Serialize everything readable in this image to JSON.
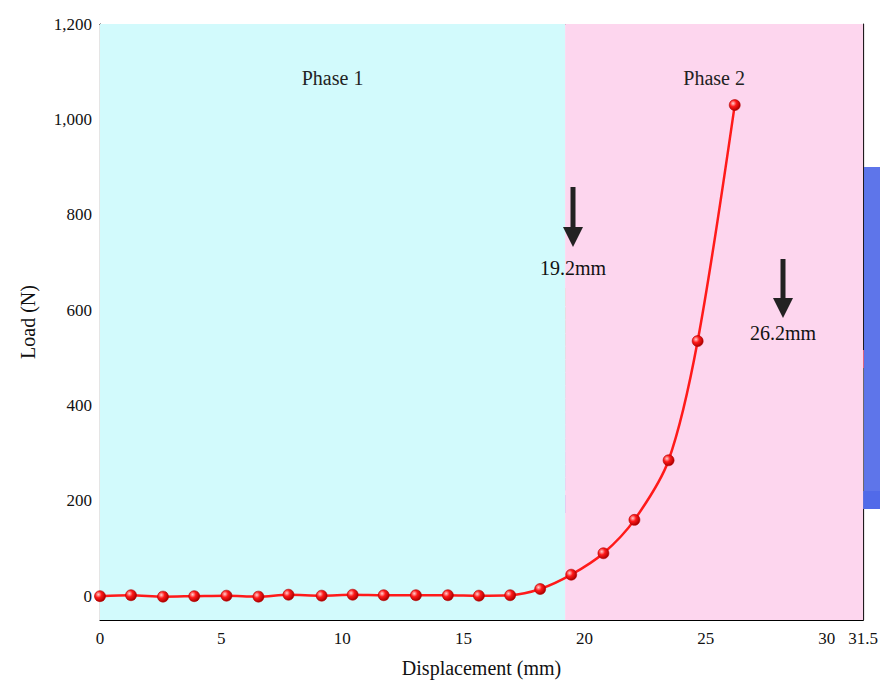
{
  "chart_data": {
    "type": "line",
    "x_label": "Displacement (mm)",
    "y_label": "Load (N)",
    "xlim": [
      0,
      31.5
    ],
    "xticks": [
      0,
      5,
      10,
      15,
      20,
      25,
      30
    ],
    "ylim": [
      -50,
      1200
    ],
    "yticks": [
      0,
      200,
      400,
      600,
      800,
      1000,
      1200
    ],
    "grid": false,
    "color": "#ff1a1a",
    "marker": "circle",
    "line_style": "solid",
    "x": [
      0,
      1.28,
      2.6,
      3.89,
      5.22,
      6.54,
      7.78,
      9.15,
      10.43,
      11.71,
      13.04,
      14.36,
      15.64,
      16.93,
      18.17,
      19.45,
      20.78,
      22.06,
      23.47,
      24.67,
      26.2
    ],
    "values": [
      0,
      2,
      -1,
      0,
      1,
      -1,
      3,
      1,
      3,
      2,
      2,
      2,
      1,
      2,
      15,
      45,
      90,
      160,
      285,
      535,
      1030
    ],
    "phases": [
      {
        "label": "Phase 1",
        "start": 0,
        "end": 19.2,
        "color": "#d2fafc"
      },
      {
        "label": "Phase 2",
        "start": 19.2,
        "end": 31.5,
        "color": "#fdd6ee"
      }
    ],
    "annotations": [
      "19.2mm",
      "26.2mm"
    ]
  }
}
